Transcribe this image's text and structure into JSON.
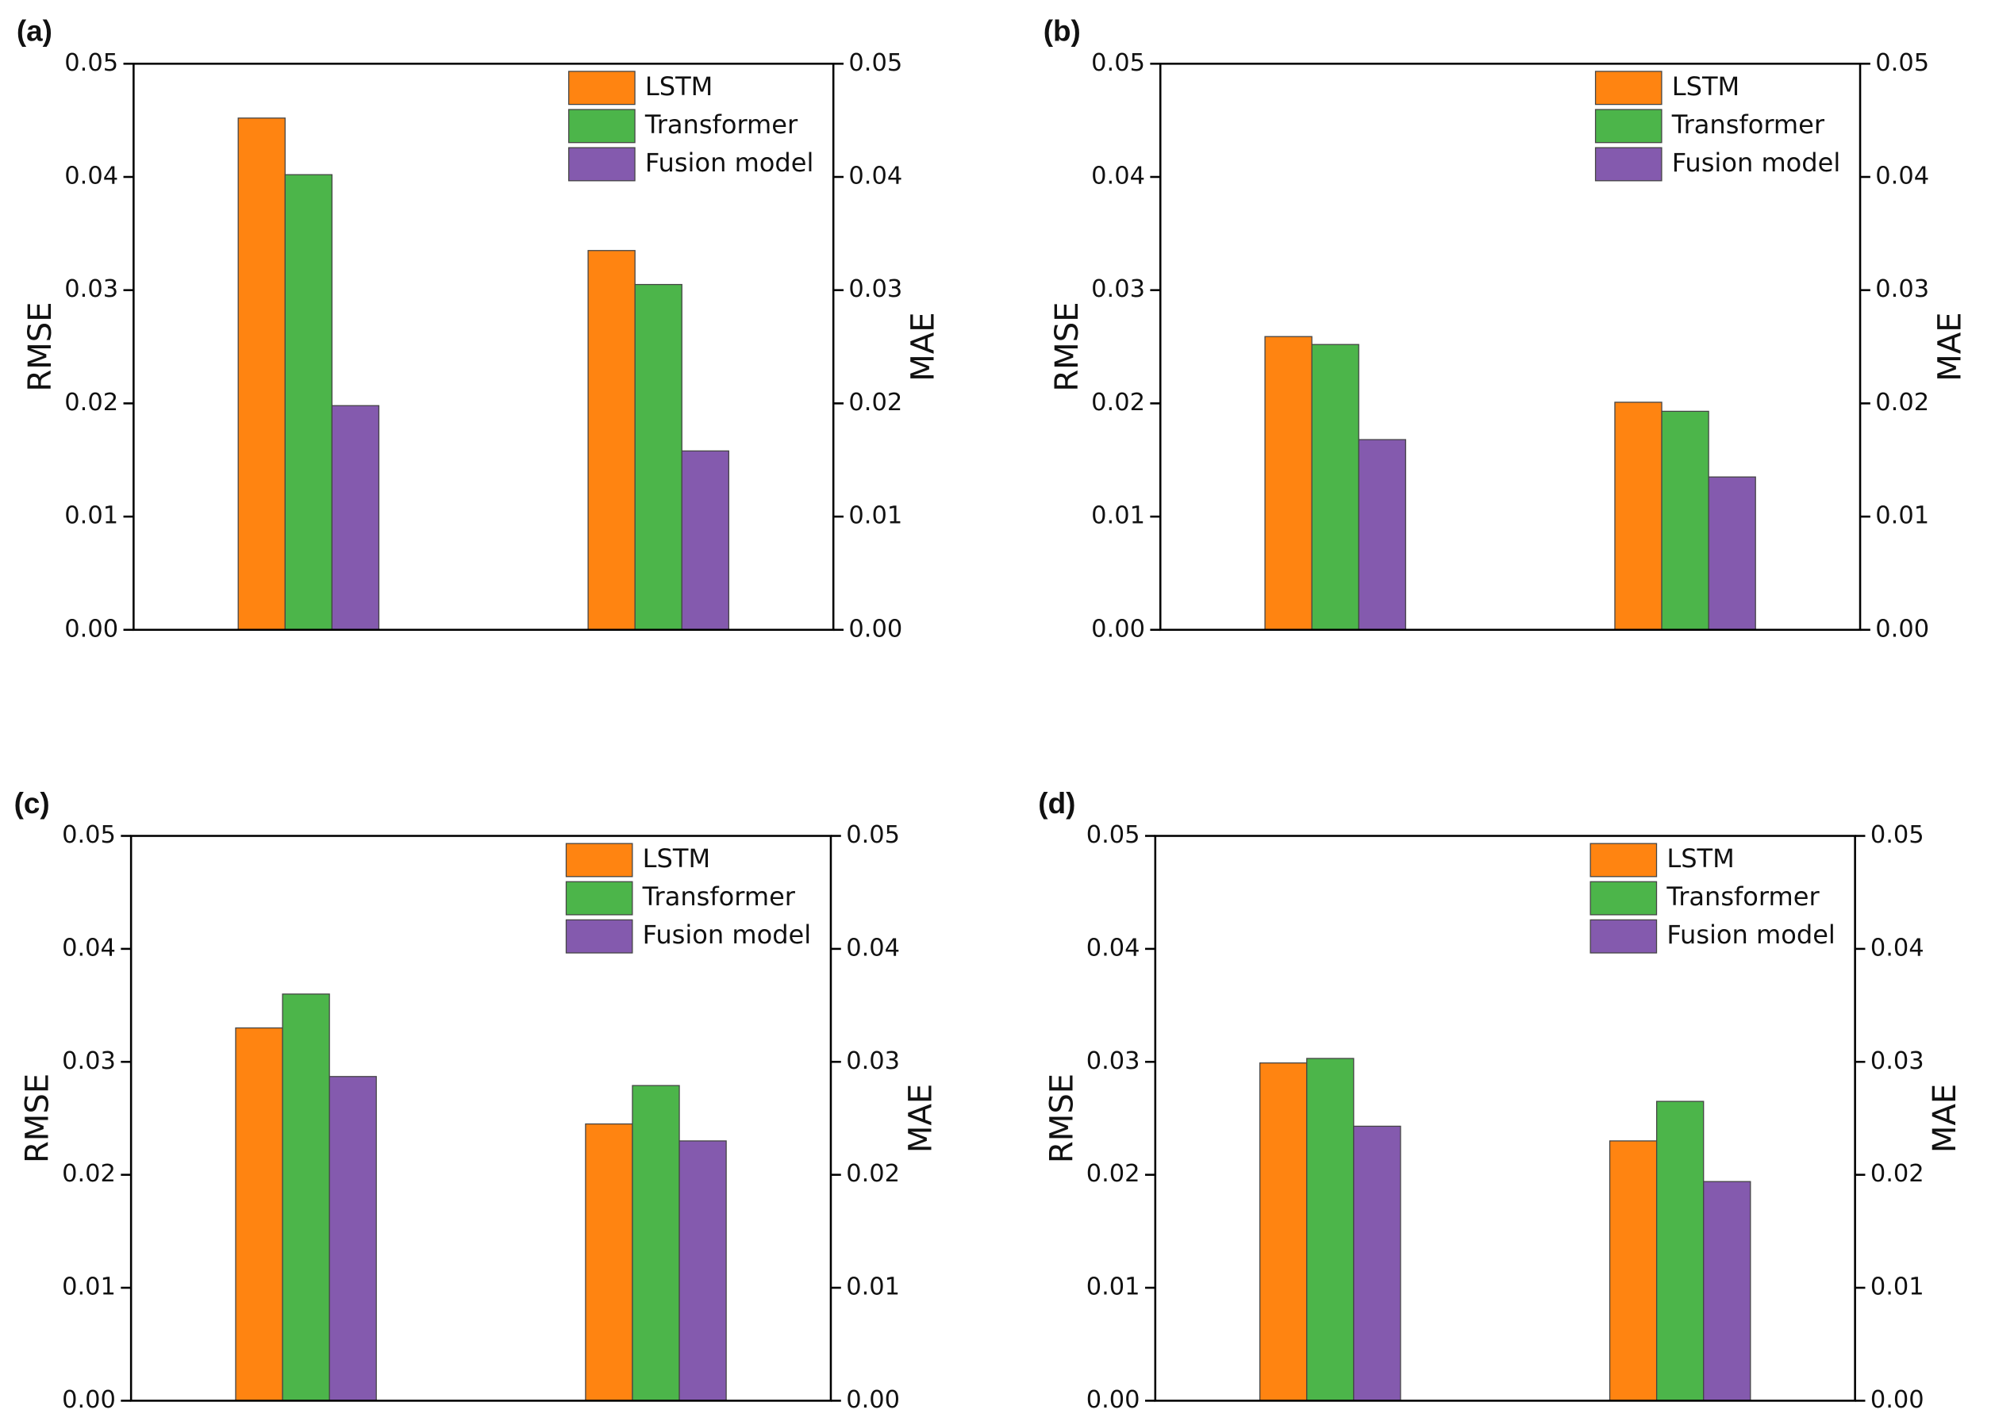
{
  "chart_data": [
    {
      "type": "bar",
      "label": "(a)",
      "ylabel": "RMSE",
      "y2label": "MAE",
      "categories": [
        null,
        null
      ],
      "series": [
        {
          "name": "LSTM",
          "color": "#ff8411",
          "values": [
            0.0452,
            0.0335
          ]
        },
        {
          "name": "Transformer",
          "color": "#4cb54a",
          "values": [
            0.0402,
            0.0305
          ]
        },
        {
          "name": "Fusion model",
          "color": "#845aae",
          "values": [
            0.0198,
            0.0158
          ]
        }
      ],
      "ylim": [
        0,
        0.05
      ],
      "yticks": [
        {
          "value": 0,
          "label": "0.00"
        },
        0.01,
        0.02,
        0.03,
        0.04,
        0.05
      ],
      "y2lim": [
        0,
        0.05
      ],
      "y2ticks": [
        {
          "value": 0,
          "label": "0.00"
        },
        0.01,
        0.02,
        0.03,
        0.04,
        0.05
      ],
      "legend": "upper right"
    },
    {
      "type": "bar",
      "label": "(b)",
      "ylabel": "RMSE",
      "y2label": "MAE",
      "categories": [
        null,
        null
      ],
      "series": [
        {
          "name": "LSTM",
          "color": "#ff8411",
          "values": [
            0.0259,
            0.0201
          ]
        },
        {
          "name": "Transformer",
          "color": "#4cb54a",
          "values": [
            0.0252,
            0.0193
          ]
        },
        {
          "name": "Fusion model",
          "color": "#845aae",
          "values": [
            0.0168,
            0.0135
          ]
        }
      ],
      "ylim": [
        0,
        0.05
      ],
      "yticks": [
        {
          "value": 0,
          "label": "0.00"
        },
        0.01,
        0.02,
        0.03,
        0.04,
        0.05
      ],
      "y2lim": [
        0,
        0.05
      ],
      "y2ticks": [
        {
          "value": 0,
          "label": "0.00"
        },
        0.01,
        0.02,
        0.03,
        0.04,
        0.05
      ],
      "legend": "upper right"
    },
    {
      "type": "bar",
      "label": "(c)",
      "ylabel": "RMSE",
      "y2label": "MAE",
      "categories": [
        null,
        null
      ],
      "series": [
        {
          "name": "LSTM",
          "color": "#ff8411",
          "values": [
            0.033,
            0.0245
          ]
        },
        {
          "name": "Transformer",
          "color": "#4cb54a",
          "values": [
            0.036,
            0.0279
          ]
        },
        {
          "name": "Fusion model",
          "color": "#845aae",
          "values": [
            0.0287,
            0.023
          ]
        }
      ],
      "ylim": [
        0,
        0.05
      ],
      "yticks": [
        {
          "value": 0,
          "label": "0.00"
        },
        0.01,
        0.02,
        0.03,
        0.04,
        0.05
      ],
      "y2lim": [
        0,
        0.05
      ],
      "y2ticks": [
        {
          "value": 0,
          "label": "0.00"
        },
        0.01,
        0.02,
        0.03,
        0.04,
        0.05
      ],
      "legend": "upper right"
    },
    {
      "type": "bar",
      "label": "(d)",
      "ylabel": "RMSE",
      "y2label": "MAE",
      "categories": [
        null,
        null
      ],
      "series": [
        {
          "name": "LSTM",
          "color": "#ff8411",
          "values": [
            0.0299,
            0.023
          ]
        },
        {
          "name": "Transformer",
          "color": "#4cb54a",
          "values": [
            0.0303,
            0.0265
          ]
        },
        {
          "name": "Fusion model",
          "color": "#845aae",
          "values": [
            0.0243,
            0.0194
          ]
        }
      ],
      "ylim": [
        0,
        0.05
      ],
      "yticks": [
        {
          "value": 0,
          "label": "0.00"
        },
        0.01,
        0.02,
        0.03,
        0.04,
        0.05
      ],
      "y2lim": [
        0,
        0.05
      ],
      "y2ticks": [
        {
          "value": 0,
          "label": "0.00"
        },
        0.01,
        0.02,
        0.03,
        0.04,
        0.05
      ],
      "legend": "upper right"
    }
  ]
}
